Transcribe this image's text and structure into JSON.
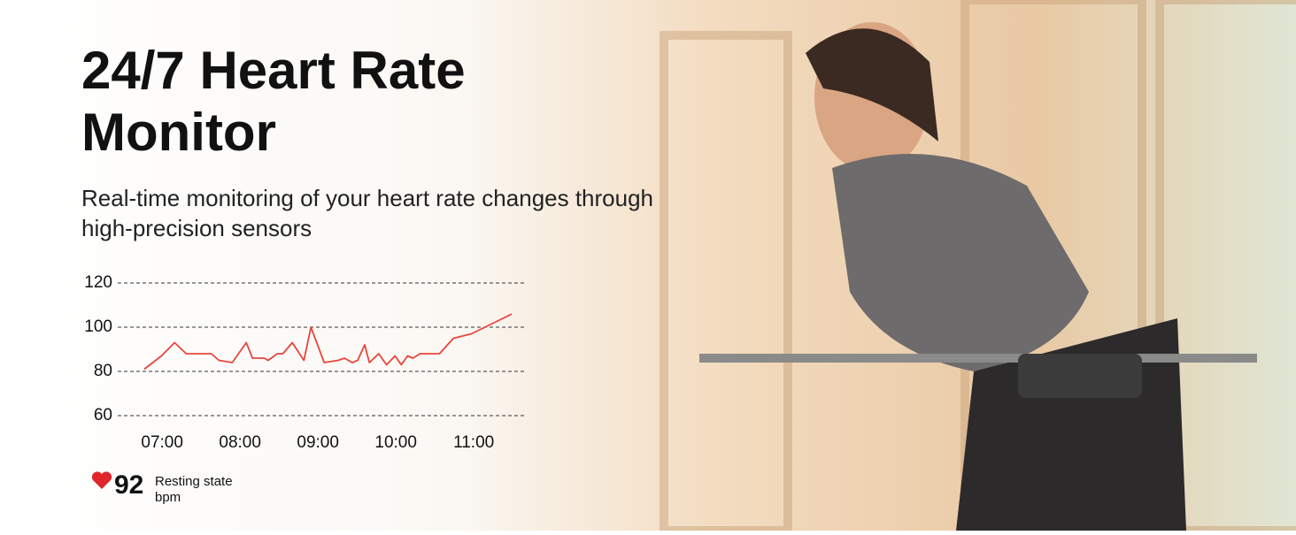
{
  "title": "24/7 Heart Rate Monitor",
  "subtitle": "Real-time monitoring of your heart rate changes through high-precision sensors",
  "chart_data": {
    "type": "line",
    "color": "#e8453c",
    "grid": true,
    "x": [
      6.77,
      6.99,
      7.16,
      7.31,
      7.63,
      7.73,
      7.9,
      8.08,
      8.16,
      8.31,
      8.36,
      8.48,
      8.55,
      8.67,
      8.82,
      8.91,
      9.08,
      9.26,
      9.34,
      9.44,
      9.51,
      9.6,
      9.66,
      9.78,
      9.88,
      9.99,
      10.07,
      10.15,
      10.22,
      10.31,
      10.49,
      10.56,
      10.74,
      10.97,
      11.49
    ],
    "values": [
      81,
      87,
      93,
      88,
      88,
      85,
      84,
      93,
      86,
      86,
      85,
      88,
      88,
      93,
      85,
      100,
      84,
      85,
      86,
      84,
      85,
      92,
      84,
      88,
      83,
      87,
      83,
      87,
      86,
      88,
      88,
      88,
      95,
      97,
      106
    ],
    "xlim": [
      6.43,
      11.68
    ],
    "xticks": [
      {
        "value": 7,
        "label": "07:00"
      },
      {
        "value": 8,
        "label": "08:00"
      },
      {
        "value": 9,
        "label": "09:00"
      },
      {
        "value": 10,
        "label": "10:00"
      },
      {
        "value": 11,
        "label": "11:00"
      }
    ],
    "ylim": [
      60,
      120
    ],
    "yticks": [
      60,
      80,
      100,
      120
    ]
  },
  "resting": {
    "value": 92,
    "label": "Resting state",
    "unit": "bpm"
  }
}
